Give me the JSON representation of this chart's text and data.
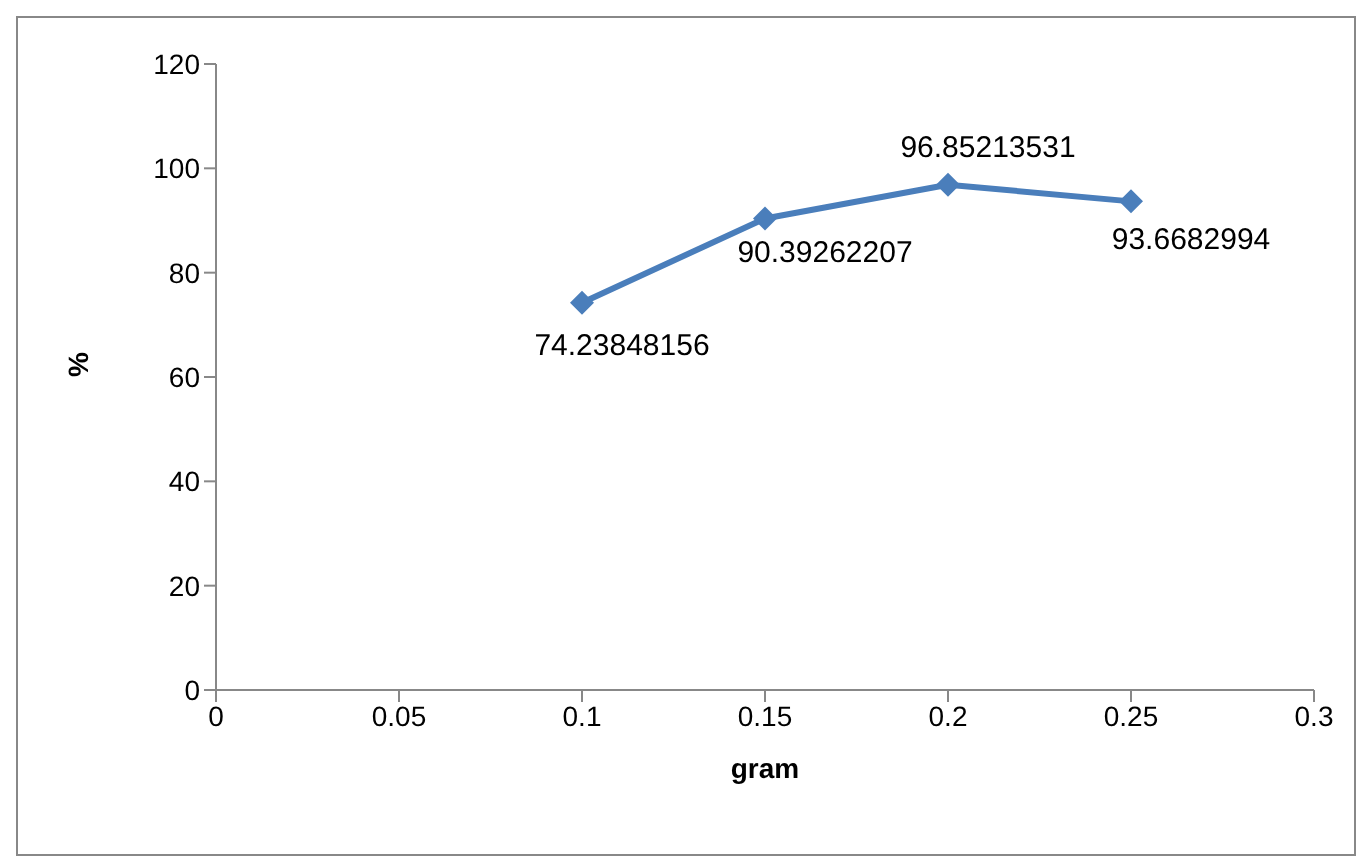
{
  "chart_data": {
    "type": "line",
    "xlabel": "gram",
    "ylabel": "%",
    "x": [
      0.1,
      0.15,
      0.2,
      0.25
    ],
    "series": [
      {
        "color": "#4a7ebb",
        "values": [
          74.23848156,
          90.39262207,
          96.85213531,
          93.6682994
        ]
      }
    ],
    "xlim": [
      0,
      0.3
    ],
    "xticks": [
      0,
      0.05,
      0.1,
      0.15,
      0.2,
      0.25,
      0.3
    ],
    "ylim": [
      0,
      120
    ],
    "yticks": [
      0,
      20,
      40,
      60,
      80,
      100,
      120
    ],
    "grid": false,
    "legend": false,
    "marker": "diamond",
    "line_style": "solid",
    "data_labels": true
  }
}
